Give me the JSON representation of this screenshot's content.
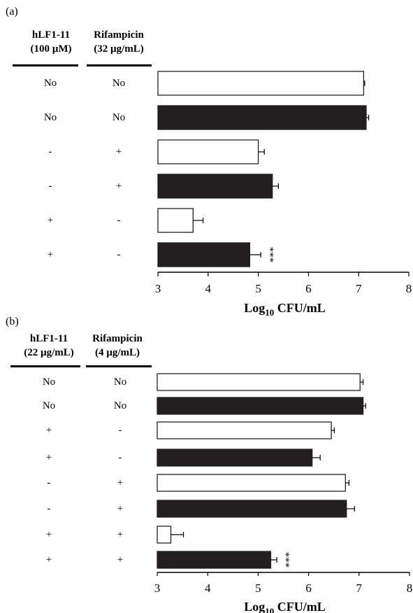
{
  "chart_data": [
    {
      "type": "bar",
      "panel": "(a)",
      "columns": [
        "hLF1-11\n(100 µM)",
        "Rifampicin\n(32 µg/mL)"
      ],
      "rows": [
        {
          "c1": "No",
          "c2": "No",
          "value": 7.1,
          "err": 0.02,
          "fill": "white",
          "sig": ""
        },
        {
          "c1": "No",
          "c2": "No",
          "value": 7.15,
          "err": 0.05,
          "fill": "black",
          "sig": ""
        },
        {
          "c1": "-",
          "c2": "+",
          "value": 5.0,
          "err": 0.12,
          "fill": "white",
          "sig": ""
        },
        {
          "c1": "-",
          "c2": "+",
          "value": 5.28,
          "err": 0.12,
          "fill": "black",
          "sig": ""
        },
        {
          "c1": "+",
          "c2": "-",
          "value": 3.7,
          "err": 0.2,
          "fill": "white",
          "sig": ""
        },
        {
          "c1": "+",
          "c2": "-",
          "value": 4.83,
          "err": 0.22,
          "fill": "black",
          "sig": "***"
        }
      ],
      "xlabel_main": "Log",
      "xlabel_sub": "10",
      "xlabel_rest": " CFU/mL",
      "xlim": [
        3,
        8
      ],
      "ticks": [
        "3",
        "4",
        "5",
        "6",
        "7",
        "8"
      ]
    },
    {
      "type": "bar",
      "panel": "(b)",
      "columns": [
        "hLF1-11\n(22 µg/mL)",
        "Rifampicin\n(4 µg/mL)"
      ],
      "rows": [
        {
          "c1": "No",
          "c2": "No",
          "value": 7.02,
          "err": 0.06,
          "fill": "white",
          "sig": ""
        },
        {
          "c1": "No",
          "c2": "No",
          "value": 7.08,
          "err": 0.05,
          "fill": "black",
          "sig": ""
        },
        {
          "c1": "+",
          "c2": "-",
          "value": 6.45,
          "err": 0.06,
          "fill": "white",
          "sig": ""
        },
        {
          "c1": "+",
          "c2": "-",
          "value": 6.07,
          "err": 0.16,
          "fill": "black",
          "sig": ""
        },
        {
          "c1": "-",
          "c2": "+",
          "value": 6.73,
          "err": 0.07,
          "fill": "white",
          "sig": ""
        },
        {
          "c1": "-",
          "c2": "+",
          "value": 6.75,
          "err": 0.16,
          "fill": "black",
          "sig": ""
        },
        {
          "c1": "+",
          "c2": "+",
          "value": 3.27,
          "err": 0.25,
          "fill": "white",
          "sig": ""
        },
        {
          "c1": "+",
          "c2": "+",
          "value": 5.25,
          "err": 0.12,
          "fill": "black",
          "sig": "***"
        }
      ],
      "xlabel_main": "Log",
      "xlabel_sub": "10",
      "xlabel_rest": " CFU/mL",
      "xlim": [
        3,
        8
      ],
      "ticks": [
        "3",
        "4",
        "5",
        "6",
        "7",
        "8"
      ]
    }
  ]
}
